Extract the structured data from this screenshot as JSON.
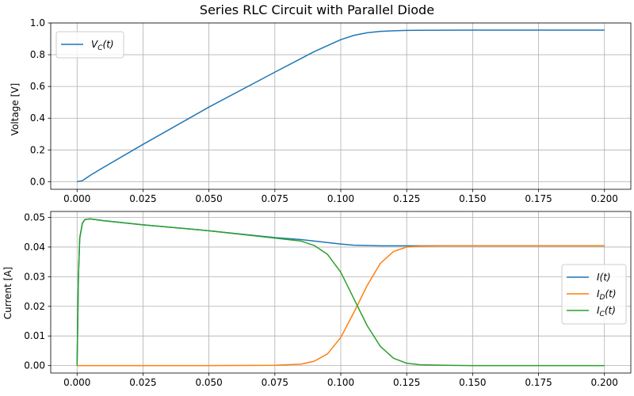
{
  "chart_data": {
    "title": "Series RLC Circuit with Parallel Diode",
    "panels": [
      {
        "type": "line",
        "ylabel": "Voltage [V]",
        "xlabel": "",
        "xlim": [
          -0.01,
          0.21
        ],
        "ylim": [
          -0.048,
          1.0
        ],
        "x_ticks": [
          "0.000",
          "0.025",
          "0.050",
          "0.075",
          "0.100",
          "0.125",
          "0.150",
          "0.175",
          "0.200"
        ],
        "x_tick_values": [
          0.0,
          0.025,
          0.05,
          0.075,
          0.1,
          0.125,
          0.15,
          0.175,
          0.2
        ],
        "y_ticks": [
          "0.0",
          "0.2",
          "0.4",
          "0.6",
          "0.8",
          "1.0"
        ],
        "y_tick_values": [
          0.0,
          0.2,
          0.4,
          0.6,
          0.8,
          1.0
        ],
        "grid": true,
        "legend": "upper left",
        "series": [
          {
            "name": "V",
            "name_sub": "C",
            "name_suffix": "(t)",
            "color": "#1f77b4",
            "x": [
              0,
              0.002,
              0.005,
              0.01,
              0.025,
              0.05,
              0.075,
              0.09,
              0.1,
              0.105,
              0.11,
              0.115,
              0.12,
              0.125,
              0.13,
              0.15,
              0.175,
              0.2
            ],
            "y": [
              0,
              0.006,
              0.04,
              0.09,
              0.235,
              0.47,
              0.69,
              0.82,
              0.895,
              0.922,
              0.938,
              0.947,
              0.951,
              0.953,
              0.954,
              0.955,
              0.955,
              0.955
            ]
          }
        ]
      },
      {
        "type": "line",
        "ylabel": "Current [A]",
        "xlabel": "",
        "xlim": [
          -0.01,
          0.21
        ],
        "ylim": [
          -0.0025,
          0.052
        ],
        "x_ticks": [
          "0.000",
          "0.025",
          "0.050",
          "0.075",
          "0.100",
          "0.125",
          "0.150",
          "0.175",
          "0.200"
        ],
        "x_tick_values": [
          0.0,
          0.025,
          0.05,
          0.075,
          0.1,
          0.125,
          0.15,
          0.175,
          0.2
        ],
        "y_ticks": [
          "0.00",
          "0.01",
          "0.02",
          "0.03",
          "0.04",
          "0.05"
        ],
        "y_tick_values": [
          0.0,
          0.01,
          0.02,
          0.03,
          0.04,
          0.05
        ],
        "grid": true,
        "legend": "center right",
        "series": [
          {
            "name": "I",
            "name_sub": "",
            "name_suffix": "(t)",
            "color": "#1f77b4",
            "x": [
              0,
              0.0005,
              0.001,
              0.002,
              0.003,
              0.005,
              0.01,
              0.025,
              0.05,
              0.075,
              0.085,
              0.09,
              0.095,
              0.1,
              0.105,
              0.11,
              0.115,
              0.12,
              0.125,
              0.13,
              0.2
            ],
            "y": [
              0,
              0.03,
              0.043,
              0.048,
              0.0493,
              0.0495,
              0.0489,
              0.0475,
              0.0455,
              0.0432,
              0.0425,
              0.042,
              0.0415,
              0.041,
              0.0406,
              0.0405,
              0.0404,
              0.0404,
              0.0404,
              0.0404,
              0.0404
            ]
          },
          {
            "name": "I",
            "name_sub": "D",
            "name_suffix": "(t)",
            "color": "#ff7f0e",
            "x": [
              0,
              0.05,
              0.075,
              0.085,
              0.09,
              0.095,
              0.1,
              0.105,
              0.11,
              0.115,
              0.12,
              0.125,
              0.13,
              0.14,
              0.2
            ],
            "y": [
              0,
              0,
              0.0001,
              0.0005,
              0.0015,
              0.004,
              0.0095,
              0.018,
              0.027,
              0.0345,
              0.0385,
              0.04,
              0.0403,
              0.0404,
              0.0404
            ]
          },
          {
            "name": "I",
            "name_sub": "C",
            "name_suffix": "(t)",
            "color": "#2ca02c",
            "x": [
              0,
              0.0005,
              0.001,
              0.002,
              0.003,
              0.005,
              0.01,
              0.025,
              0.05,
              0.075,
              0.085,
              0.09,
              0.095,
              0.1,
              0.105,
              0.11,
              0.115,
              0.12,
              0.125,
              0.13,
              0.14,
              0.15,
              0.2
            ],
            "y": [
              0,
              0.03,
              0.043,
              0.048,
              0.0493,
              0.0495,
              0.0489,
              0.0475,
              0.0455,
              0.043,
              0.042,
              0.0405,
              0.0375,
              0.0315,
              0.0225,
              0.0135,
              0.0065,
              0.0025,
              0.0008,
              0.0003,
              0.0001,
              0,
              0
            ]
          }
        ]
      }
    ]
  }
}
